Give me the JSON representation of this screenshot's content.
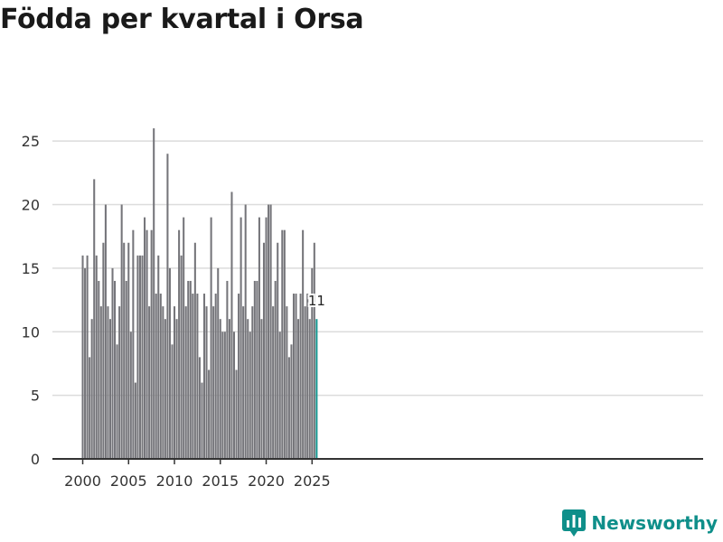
{
  "title": "Födda per kvartal i Orsa",
  "brand": {
    "name": "Newsworthy"
  },
  "colors": {
    "bar": "#75757a",
    "highlight": "#15958f",
    "grid": "#dcdcdc",
    "axis": "#333333"
  },
  "chart_data": {
    "type": "bar",
    "title": "Födda per kvartal i Orsa",
    "xlabel": "",
    "ylabel": "",
    "ylim": [
      0,
      27
    ],
    "yticks": [
      0,
      5,
      10,
      15,
      20,
      25
    ],
    "xticks": [
      2000,
      2005,
      2010,
      2015,
      2020,
      2025
    ],
    "grid": true,
    "start": {
      "year": 2000,
      "quarter": 1
    },
    "values": [
      16,
      15,
      16,
      8,
      11,
      22,
      16,
      14,
      12,
      17,
      20,
      12,
      11,
      15,
      14,
      9,
      12,
      20,
      17,
      14,
      17,
      10,
      18,
      6,
      16,
      16,
      16,
      19,
      18,
      12,
      18,
      26,
      13,
      16,
      13,
      12,
      11,
      24,
      15,
      9,
      12,
      11,
      18,
      16,
      19,
      12,
      14,
      14,
      13,
      17,
      13,
      8,
      6,
      13,
      12,
      7,
      19,
      12,
      13,
      15,
      11,
      10,
      10,
      14,
      11,
      21,
      10,
      7,
      13,
      19,
      12,
      20,
      11,
      10,
      12,
      14,
      14,
      19,
      11,
      17,
      19,
      20,
      20,
      12,
      14,
      17,
      10,
      18,
      18,
      12,
      8,
      9,
      13,
      13,
      11,
      13,
      18,
      12,
      13,
      11,
      15,
      17,
      11
    ],
    "highlight": {
      "index": 102,
      "label": "11"
    }
  }
}
